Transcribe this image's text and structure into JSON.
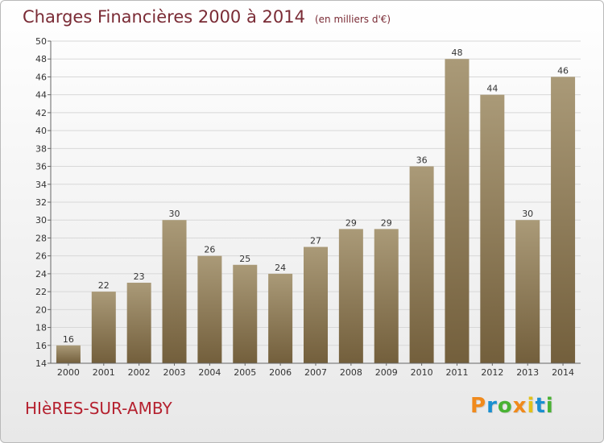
{
  "title": "Charges Financières 2000 à 2014",
  "subtitle": "(en milliers d'€)",
  "commune": "HIèRES-SUR-AMBY",
  "logo": {
    "letters": [
      "P",
      "r",
      "o",
      "x",
      "i",
      "t",
      "i"
    ],
    "colors": [
      "#f08a1c",
      "#1a8fd0",
      "#49b233",
      "#f08a1c",
      "#e2c11a",
      "#1a8fd0",
      "#49b233"
    ]
  },
  "colors": {
    "bar_top": "#aa9a78",
    "bar_bottom": "#735f3c",
    "grid": "#d8d8d8",
    "axis": "#666666"
  },
  "chart_data": {
    "type": "bar",
    "categories": [
      "2000",
      "2001",
      "2002",
      "2003",
      "2004",
      "2005",
      "2006",
      "2007",
      "2008",
      "2009",
      "2010",
      "2011",
      "2012",
      "2013",
      "2014"
    ],
    "values": [
      16,
      22,
      23,
      30,
      26,
      25,
      24,
      27,
      29,
      29,
      36,
      48,
      44,
      30,
      46
    ],
    "ylim": [
      14,
      50
    ],
    "yticks": [
      14,
      16,
      18,
      20,
      22,
      24,
      26,
      28,
      30,
      32,
      34,
      36,
      38,
      40,
      42,
      44,
      46,
      48,
      50
    ],
    "grid": true,
    "title": "Charges Financières 2000 à 2014",
    "xlabel": "",
    "ylabel": ""
  }
}
